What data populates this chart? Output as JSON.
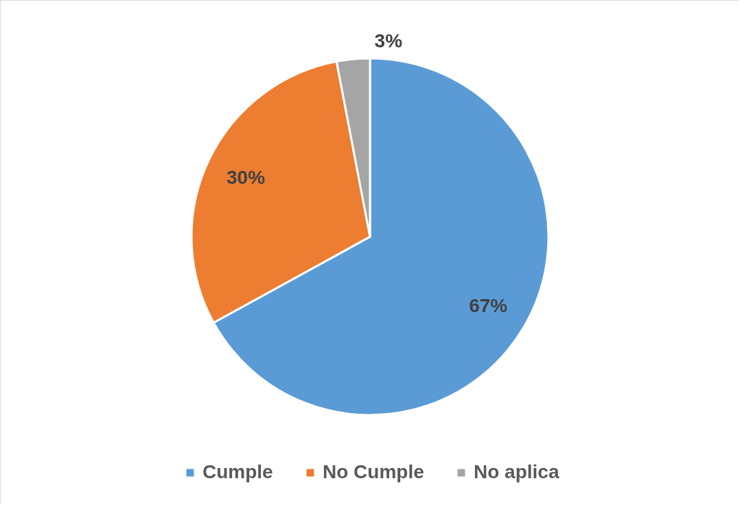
{
  "chart_data": {
    "type": "pie",
    "categories": [
      "Cumple",
      "No Cumple",
      "No aplica"
    ],
    "values": [
      67,
      30,
      3
    ],
    "colors": [
      "#5b9bd5",
      "#ed7d31",
      "#a5a5a5"
    ],
    "value_labels": [
      "67%",
      "30%",
      "3%"
    ],
    "legend": "bottom"
  }
}
